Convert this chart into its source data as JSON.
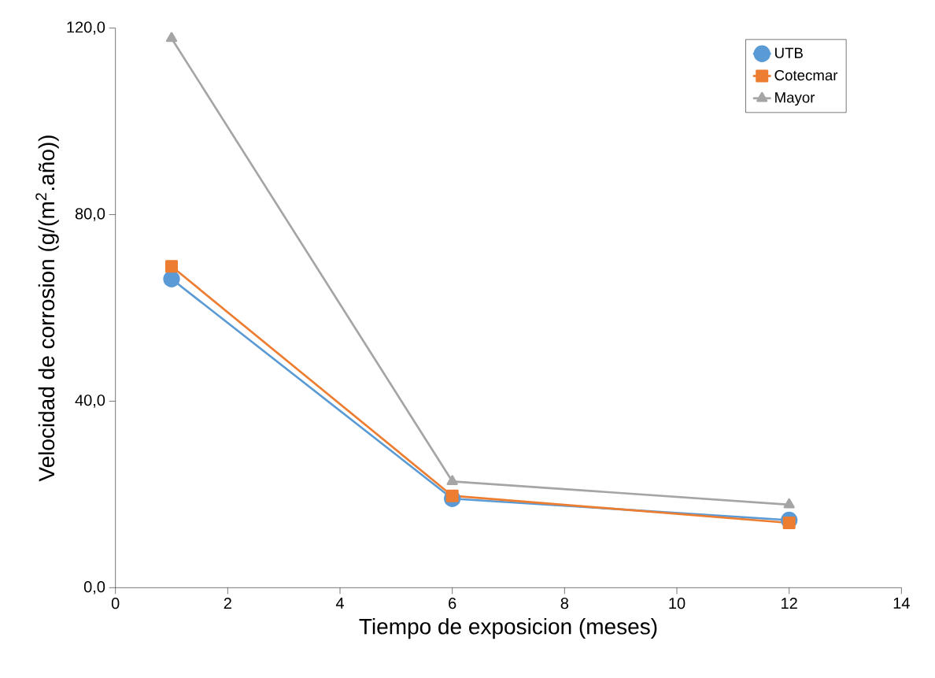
{
  "chart_data": {
    "type": "line",
    "xlabel": "Tiempo de exposicion (meses)",
    "ylabel": "Velocidad de corrosion (g/(m$^{2}$.año))",
    "x": [
      1,
      6,
      12
    ],
    "series": [
      {
        "name": "UTB",
        "color": "#5b9bd5",
        "marker": "circle",
        "values": [
          66.2,
          19.1,
          14.5
        ]
      },
      {
        "name": "Cotecmar",
        "color": "#ed7d31",
        "marker": "square",
        "values": [
          68.9,
          19.7,
          13.9
        ]
      },
      {
        "name": "Mayor",
        "color": "#a5a5a5",
        "marker": "triangle",
        "values": [
          117.8,
          22.8,
          17.8
        ]
      }
    ],
    "xlim": [
      0,
      14
    ],
    "xticks": [
      0,
      2,
      4,
      6,
      8,
      10,
      12,
      14
    ],
    "ylim": [
      0,
      120
    ],
    "yticks": [
      {
        "value": 0,
        "label": "0,0"
      },
      {
        "value": 40,
        "label": "40,0"
      },
      {
        "value": 80,
        "label": "80,0"
      },
      {
        "value": 120,
        "label": "120,0"
      }
    ],
    "grid": false,
    "legend": "top right",
    "line_style": "solid"
  }
}
